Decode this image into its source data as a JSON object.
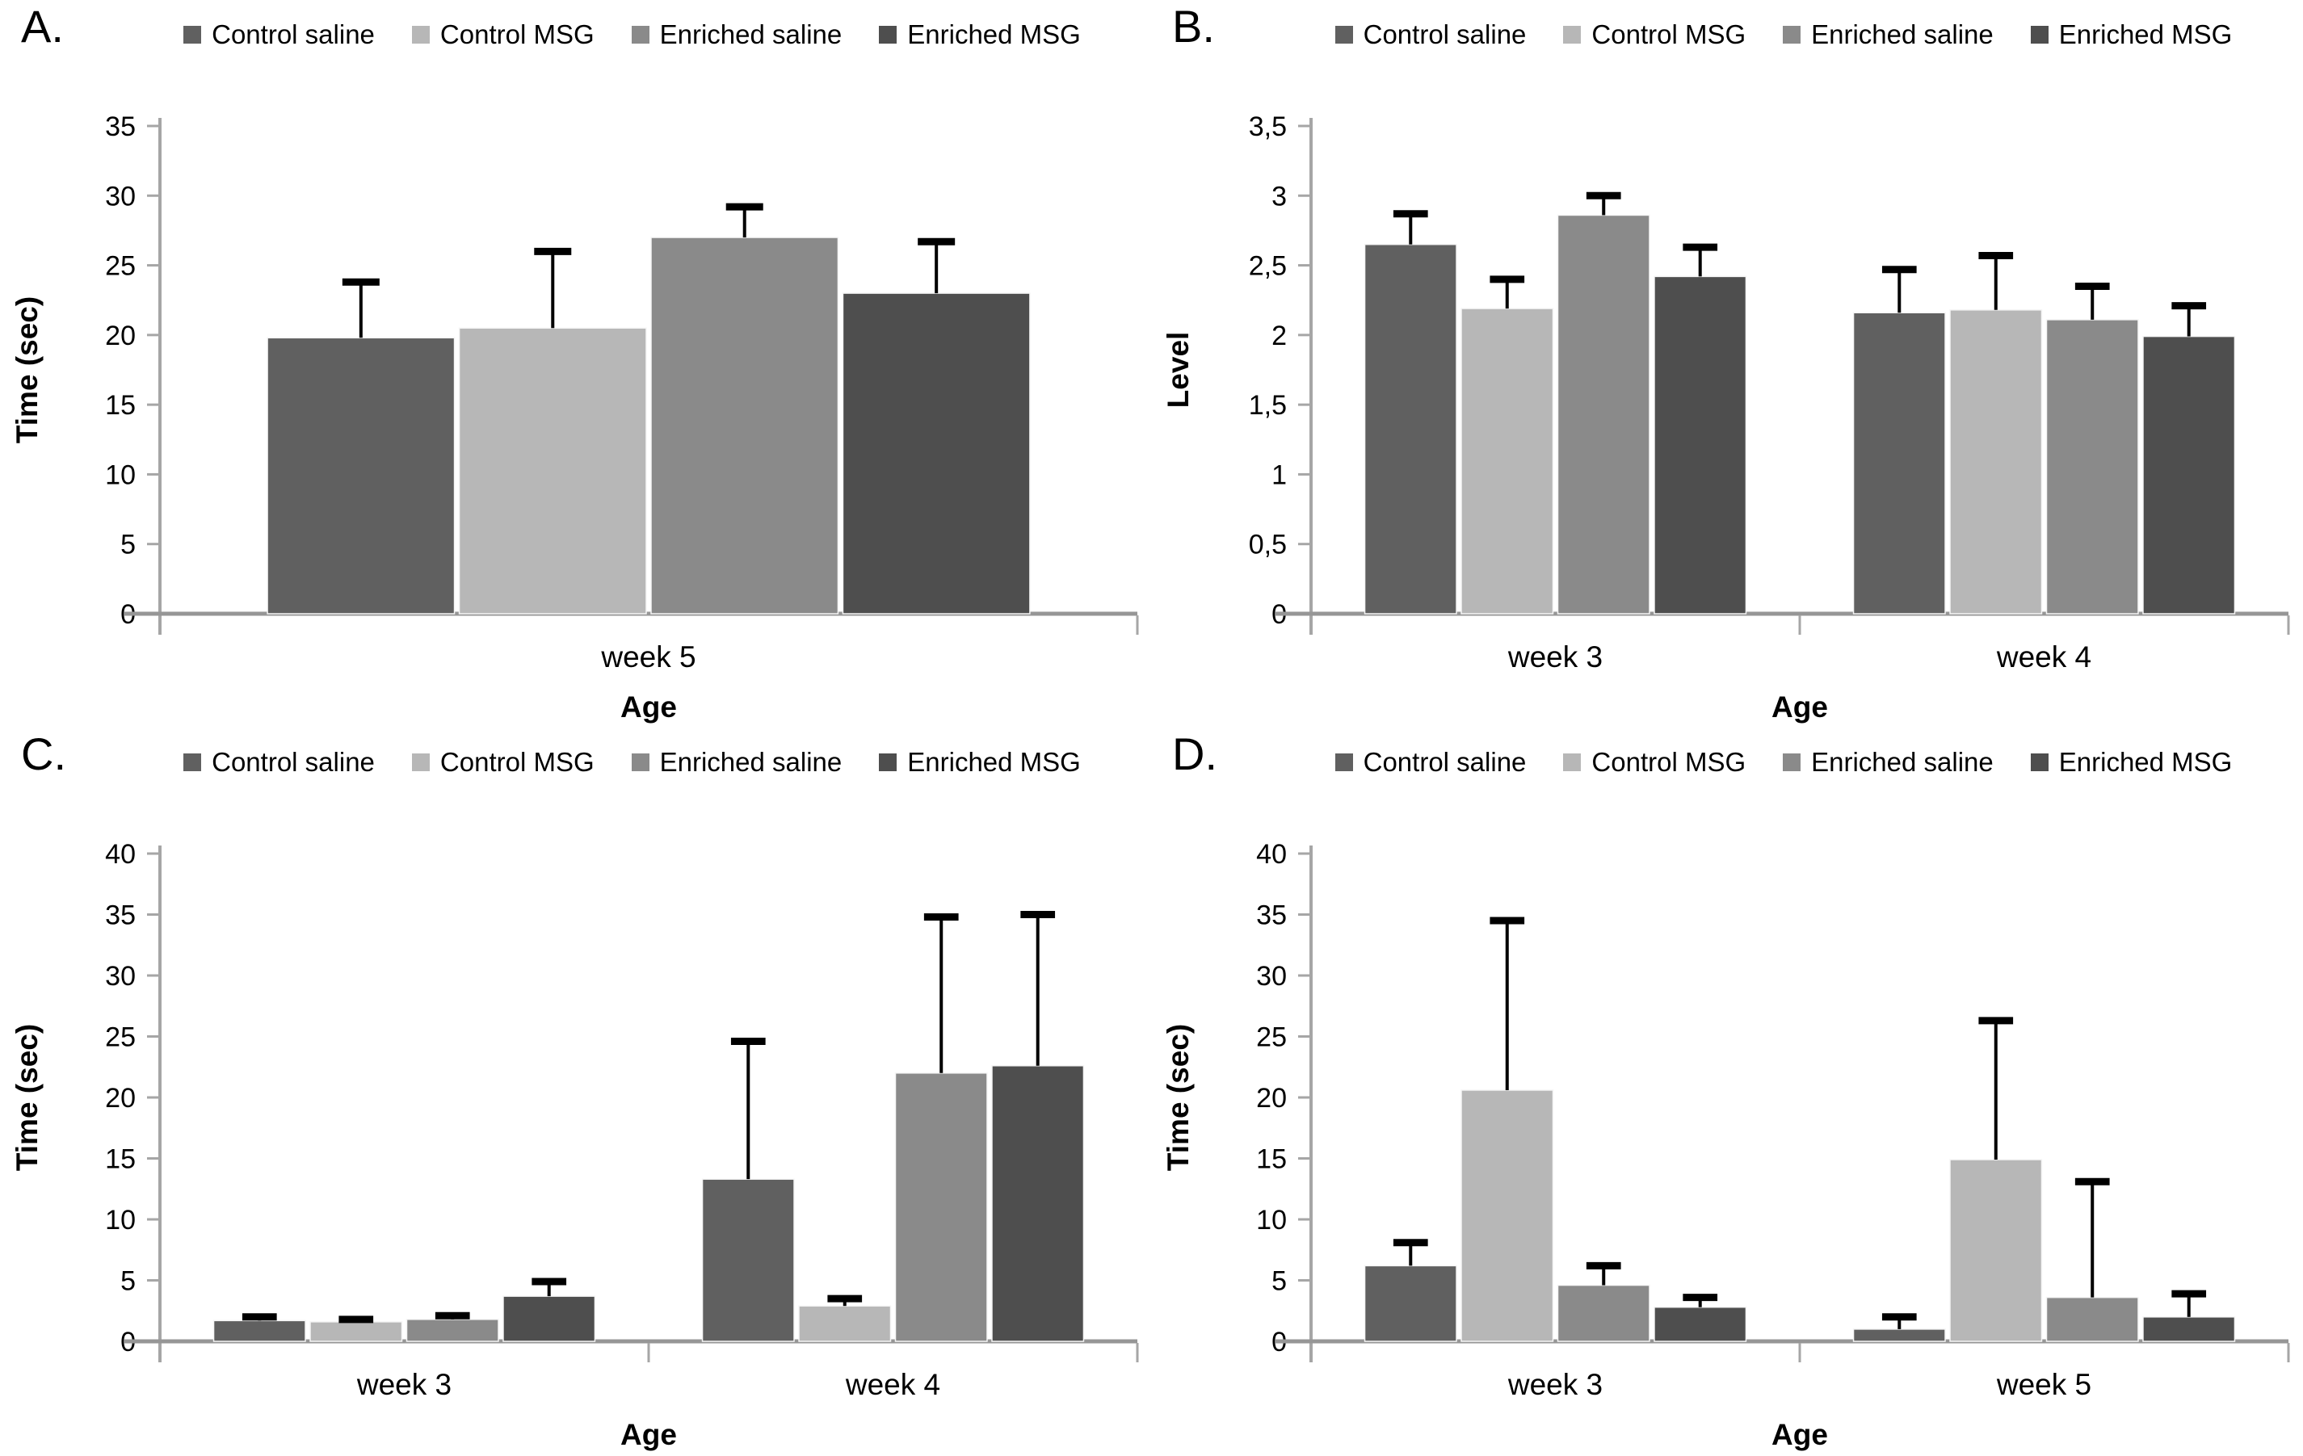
{
  "figure": {
    "background": "#ffffff",
    "series_colors": [
      "#606060",
      "#b7b7b7",
      "#8a8a8a",
      "#4e4e4e"
    ],
    "axis_color": "#a6a6a6",
    "baseline_color": "#969696",
    "error_bar_color": "#000000"
  },
  "chart_data": [
    {
      "id": "A",
      "panel_label": "A.",
      "type": "bar",
      "categories": [
        "week 5"
      ],
      "series": [
        {
          "name": "Control saline",
          "values": [
            19.8
          ],
          "errors": [
            4.0
          ]
        },
        {
          "name": "Control MSG",
          "values": [
            20.5
          ],
          "errors": [
            5.5
          ]
        },
        {
          "name": "Enriched saline",
          "values": [
            27.0
          ],
          "errors": [
            2.2
          ]
        },
        {
          "name": "Enriched MSG",
          "values": [
            23.0
          ],
          "errors": [
            3.7
          ]
        }
      ],
      "xlabel": "Age",
      "ylabel": "Time (sec)",
      "ylim": [
        0,
        35
      ],
      "ytick_step": 5,
      "decimal_comma": false,
      "legend_position": "top",
      "grid": false
    },
    {
      "id": "B",
      "panel_label": "B.",
      "type": "bar",
      "categories": [
        "week 3",
        "week 4"
      ],
      "series": [
        {
          "name": "Control saline",
          "values": [
            2.65,
            2.16
          ],
          "errors": [
            0.22,
            0.31
          ]
        },
        {
          "name": "Control MSG",
          "values": [
            2.19,
            2.18
          ],
          "errors": [
            0.21,
            0.39
          ]
        },
        {
          "name": "Enriched saline",
          "values": [
            2.86,
            2.11
          ],
          "errors": [
            0.14,
            0.24
          ]
        },
        {
          "name": "Enriched MSG",
          "values": [
            2.42,
            1.99
          ],
          "errors": [
            0.21,
            0.22
          ]
        }
      ],
      "xlabel": "Age",
      "ylabel": "Level",
      "ylim": [
        0,
        3.5
      ],
      "ytick_step": 0.5,
      "decimal_comma": true,
      "legend_position": "top",
      "grid": false
    },
    {
      "id": "C",
      "panel_label": "C.",
      "type": "bar",
      "categories": [
        "week 3",
        "week 4"
      ],
      "series": [
        {
          "name": "Control saline",
          "values": [
            1.7,
            13.3
          ],
          "errors": [
            0.3,
            11.3
          ]
        },
        {
          "name": "Control MSG",
          "values": [
            1.6,
            2.9
          ],
          "errors": [
            0.2,
            0.6
          ]
        },
        {
          "name": "Enriched saline",
          "values": [
            1.8,
            22.0
          ],
          "errors": [
            0.3,
            12.8
          ]
        },
        {
          "name": "Enriched MSG",
          "values": [
            3.7,
            22.6
          ],
          "errors": [
            1.2,
            12.4
          ]
        }
      ],
      "xlabel": "Age",
      "ylabel": "Time (sec)",
      "ylim": [
        0,
        40
      ],
      "ytick_step": 5,
      "decimal_comma": false,
      "legend_position": "top",
      "grid": false
    },
    {
      "id": "D",
      "panel_label": "D.",
      "type": "bar",
      "categories": [
        "week 3",
        "week 5"
      ],
      "series": [
        {
          "name": "Control saline",
          "values": [
            6.2,
            1.0
          ],
          "errors": [
            1.9,
            1.0
          ]
        },
        {
          "name": "Control MSG",
          "values": [
            20.6,
            14.9
          ],
          "errors": [
            13.9,
            11.4
          ]
        },
        {
          "name": "Enriched saline",
          "values": [
            4.6,
            3.6
          ],
          "errors": [
            1.6,
            9.5
          ]
        },
        {
          "name": "Enriched MSG",
          "values": [
            2.8,
            2.0
          ],
          "errors": [
            0.8,
            1.9
          ]
        }
      ],
      "xlabel": "Age",
      "ylabel": "Time (sec)",
      "ylim": [
        0,
        40
      ],
      "ytick_step": 5,
      "decimal_comma": false,
      "legend_position": "top",
      "grid": false
    }
  ]
}
